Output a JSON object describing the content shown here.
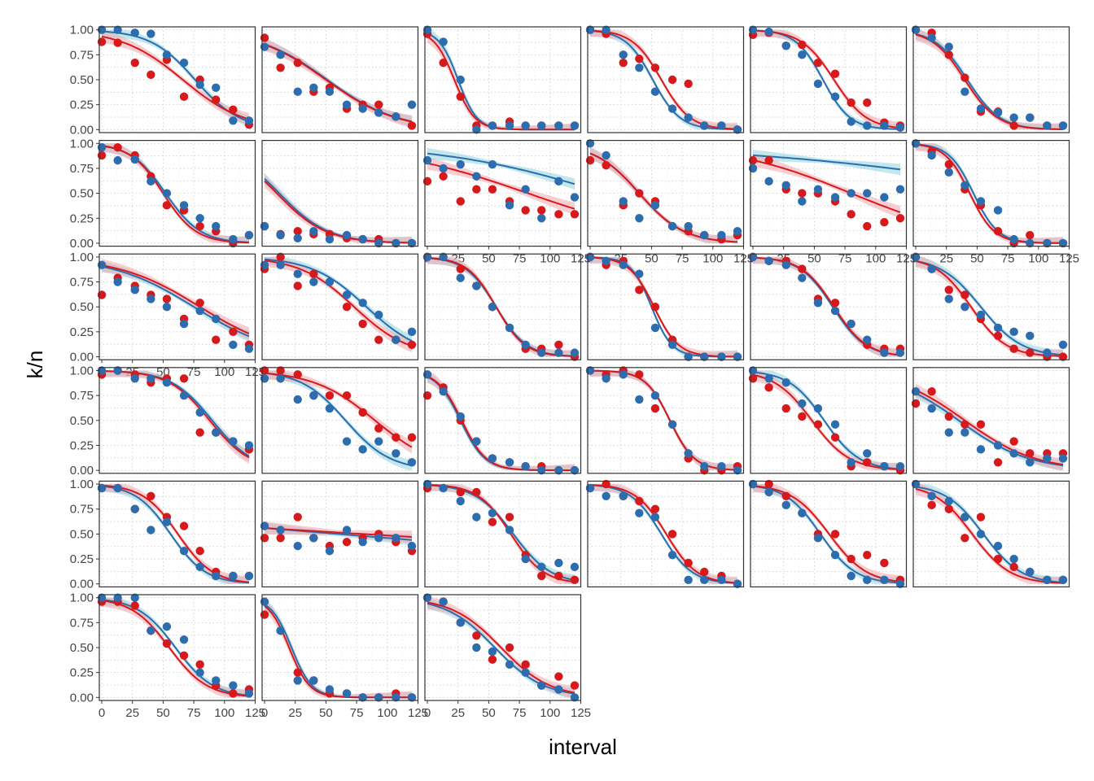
{
  "chart_data": {
    "type": "scatter",
    "layout": "facet-grid 6 rows x 6 columns, 33 panels, panels filled row by row",
    "xlabel": "interval",
    "ylabel": "k/n",
    "xlim": [
      -2,
      125
    ],
    "ylim": [
      -0.03,
      1.03
    ],
    "x_ticks": [
      0,
      25,
      50,
      75,
      100,
      125
    ],
    "x_tick_labels": [
      "0",
      "25",
      "50",
      "75",
      "100",
      "125"
    ],
    "y_ticks": [
      0,
      0.25,
      0.5,
      0.75,
      1
    ],
    "y_tick_labels": [
      "0.00",
      "0.25",
      "0.50",
      "0.75",
      "1.00"
    ],
    "x_tick_labels_shown_under": [
      8,
      9,
      10,
      11,
      12,
      30,
      31,
      32
    ],
    "grid": "dotted minor/major gridlines",
    "x": [
      0,
      13,
      27,
      40,
      53,
      67,
      80,
      93,
      107,
      120
    ],
    "series_colors": {
      "red": "#d7191c",
      "blue": "#2c6db0"
    },
    "ribbon_colors": {
      "red": "#f4a6ad",
      "blue": "#8fd3df",
      "overlap": "#9aa0a6"
    },
    "panels": [
      {
        "red": [
          0.88,
          0.87,
          0.67,
          0.55,
          0.7,
          0.33,
          0.5,
          0.3,
          0.2,
          0.05
        ],
        "blue": [
          1.0,
          1.0,
          0.97,
          0.96,
          0.75,
          0.67,
          0.45,
          0.42,
          0.09,
          0.09
        ],
        "fit_red": [
          66,
          -0.04
        ],
        "fit_blue": [
          76,
          -0.055
        ]
      },
      {
        "red": [
          0.92,
          0.62,
          0.67,
          0.38,
          0.42,
          0.21,
          0.25,
          0.25,
          0.13,
          0.04
        ],
        "blue": [
          0.83,
          0.75,
          0.38,
          0.42,
          0.38,
          0.25,
          0.21,
          0.17,
          0.13,
          0.25
        ],
        "fit_red": [
          50,
          -0.035
        ],
        "fit_blue": [
          51,
          -0.035
        ]
      },
      {
        "red": [
          0.96,
          0.67,
          0.33,
          0.04,
          0.04,
          0.08,
          0.04,
          0.04,
          0.04,
          0.04
        ],
        "blue": [
          1.0,
          0.88,
          0.5,
          0.0,
          0.04,
          0.04,
          0.04,
          0.04,
          0.04,
          0.04
        ],
        "fit_red": [
          22,
          -0.12
        ],
        "fit_blue": [
          25,
          -0.13
        ]
      },
      {
        "red": [
          1.0,
          0.96,
          0.67,
          0.71,
          0.62,
          0.5,
          0.46,
          0.04,
          0.04,
          0.0
        ],
        "blue": [
          1.0,
          1.0,
          0.75,
          0.62,
          0.38,
          0.21,
          0.12,
          0.04,
          0.04,
          0.0
        ],
        "fit_red": [
          58,
          -0.085
        ],
        "fit_blue": [
          51,
          -0.09
        ]
      },
      {
        "red": [
          0.95,
          0.97,
          0.84,
          0.85,
          0.67,
          0.56,
          0.27,
          0.27,
          0.07,
          0.04
        ],
        "blue": [
          1.0,
          0.98,
          0.84,
          0.75,
          0.46,
          0.33,
          0.08,
          0.04,
          0.04,
          0.02
        ],
        "fit_red": [
          66,
          -0.075
        ],
        "fit_blue": [
          57,
          -0.09
        ]
      },
      {
        "red": [
          1.0,
          0.97,
          0.75,
          0.52,
          0.18,
          0.18,
          0.04,
          0.12,
          0.04,
          0.04
        ],
        "blue": [
          1.0,
          0.92,
          0.83,
          0.38,
          0.21,
          0.17,
          0.12,
          0.12,
          0.04,
          0.04
        ],
        "fit_red": [
          40,
          -0.075
        ],
        "fit_blue": [
          42,
          -0.075
        ]
      },
      {
        "red": [
          0.88,
          0.96,
          0.88,
          0.67,
          0.38,
          0.33,
          0.17,
          0.12,
          0.0,
          0.08
        ],
        "blue": [
          0.96,
          0.83,
          0.84,
          0.62,
          0.5,
          0.38,
          0.25,
          0.17,
          0.04,
          0.08
        ],
        "fit_red": [
          50,
          -0.075
        ],
        "fit_blue": [
          52,
          -0.07
        ]
      },
      {
        "red": [
          0.17,
          0.09,
          0.12,
          0.09,
          0.09,
          0.05,
          0.04,
          0.04,
          0.0,
          0.0
        ],
        "blue": [
          0.17,
          0.08,
          0.05,
          0.12,
          0.04,
          0.08,
          0.04,
          0.0,
          0.0,
          0.0
        ],
        "fit_red": [
          10,
          -0.05
        ],
        "fit_blue": [
          12,
          -0.05
        ]
      },
      {
        "red": [
          0.62,
          0.67,
          0.42,
          0.54,
          0.54,
          0.42,
          0.33,
          0.33,
          0.29,
          0.29
        ],
        "blue": [
          0.83,
          0.75,
          0.79,
          0.67,
          0.79,
          0.38,
          0.54,
          0.25,
          0.62,
          0.46
        ],
        "fit_red": [
          82,
          -0.017
        ],
        "fit_blue": [
          145,
          -0.015
        ]
      },
      {
        "red": [
          0.83,
          0.78,
          0.38,
          0.5,
          0.42,
          0.17,
          0.12,
          0.08,
          0.04,
          0.08
        ],
        "blue": [
          1.0,
          0.88,
          0.42,
          0.25,
          0.38,
          0.17,
          0.17,
          0.08,
          0.08,
          0.12
        ],
        "fit_red": [
          40,
          -0.055
        ],
        "fit_blue": [
          40,
          -0.055
        ]
      },
      {
        "red": [
          0.83,
          0.83,
          0.54,
          0.5,
          0.5,
          0.42,
          0.29,
          0.17,
          0.21,
          0.25
        ],
        "blue": [
          0.75,
          0.62,
          0.58,
          0.42,
          0.54,
          0.46,
          0.5,
          0.5,
          0.46,
          0.54
        ],
        "fit_red": [
          80,
          -0.02
        ],
        "fit_blue": [
          250,
          -0.008
        ]
      },
      {
        "red": [
          1.0,
          0.92,
          0.79,
          0.54,
          0.38,
          0.12,
          0.0,
          0.08,
          0.0,
          0.0
        ],
        "blue": [
          1.0,
          0.88,
          0.71,
          0.58,
          0.42,
          0.33,
          0.04,
          0.0,
          0.0,
          0.0
        ],
        "fit_red": [
          44,
          -0.1
        ],
        "fit_blue": [
          47,
          -0.1
        ]
      },
      {
        "red": [
          0.62,
          0.79,
          0.71,
          0.62,
          0.58,
          0.38,
          0.54,
          0.17,
          0.25,
          0.12
        ],
        "blue": [
          0.92,
          0.75,
          0.67,
          0.58,
          0.5,
          0.33,
          0.46,
          0.38,
          0.12,
          0.08
        ],
        "fit_red": [
          80,
          -0.03
        ],
        "fit_blue": [
          75,
          -0.03
        ]
      },
      {
        "red": [
          0.88,
          1.0,
          0.71,
          0.83,
          0.75,
          0.5,
          0.33,
          0.17,
          0.17,
          0.12
        ],
        "blue": [
          0.92,
          0.92,
          0.83,
          0.75,
          0.75,
          0.62,
          0.54,
          0.42,
          0.17,
          0.25
        ],
        "fit_red": [
          73,
          -0.045
        ],
        "fit_blue": [
          83,
          -0.045
        ]
      },
      {
        "red": [
          1.0,
          1.0,
          0.88,
          0.71,
          0.5,
          0.29,
          0.08,
          0.08,
          0.12,
          0.0
        ],
        "blue": [
          1.0,
          1.0,
          0.79,
          0.71,
          0.5,
          0.29,
          0.12,
          0.04,
          0.04,
          0.04
        ],
        "fit_red": [
          56,
          -0.085
        ],
        "fit_blue": [
          56,
          -0.08
        ]
      },
      {
        "red": [
          1.0,
          0.92,
          0.96,
          0.67,
          0.5,
          0.17,
          0.0,
          0.0,
          0.0,
          0.0
        ],
        "blue": [
          1.0,
          0.96,
          0.92,
          0.83,
          0.29,
          0.12,
          0.0,
          0.0,
          0.0,
          0.0
        ],
        "fit_red": [
          52,
          -0.1
        ],
        "fit_blue": [
          50,
          -0.12
        ]
      },
      {
        "red": [
          1.0,
          0.96,
          0.96,
          0.88,
          0.58,
          0.54,
          0.33,
          0.12,
          0.08,
          0.08
        ],
        "blue": [
          1.0,
          0.96,
          0.92,
          0.79,
          0.54,
          0.46,
          0.33,
          0.17,
          0.04,
          0.04
        ],
        "fit_red": [
          66,
          -0.075
        ],
        "fit_blue": [
          65,
          -0.075
        ]
      },
      {
        "red": [
          1.0,
          0.88,
          0.67,
          0.62,
          0.38,
          0.21,
          0.08,
          0.04,
          0.0,
          0.0
        ],
        "blue": [
          1.0,
          0.88,
          0.58,
          0.5,
          0.42,
          0.29,
          0.25,
          0.21,
          0.04,
          0.12
        ],
        "fit_red": [
          45,
          -0.07
        ],
        "fit_blue": [
          53,
          -0.06
        ]
      },
      {
        "red": [
          0.96,
          1.0,
          0.96,
          0.88,
          0.92,
          0.92,
          0.38,
          0.38,
          0.29,
          0.21
        ],
        "blue": [
          1.0,
          1.0,
          0.92,
          0.92,
          0.88,
          0.75,
          0.58,
          0.38,
          0.29,
          0.25
        ],
        "fit_red": [
          88,
          -0.06
        ],
        "fit_blue": [
          90,
          -0.06
        ]
      },
      {
        "red": [
          1.0,
          1.0,
          0.96,
          0.75,
          0.75,
          0.75,
          0.58,
          0.42,
          0.33,
          0.33
        ],
        "blue": [
          0.92,
          0.92,
          0.71,
          0.75,
          0.62,
          0.29,
          0.21,
          0.29,
          0.17,
          0.08
        ],
        "fit_red": [
          90,
          -0.04
        ],
        "fit_blue": [
          66,
          -0.055
        ]
      },
      {
        "red": [
          0.75,
          0.83,
          0.5,
          0.29,
          0.12,
          0.08,
          0.04,
          0.04,
          0.0,
          0.0
        ],
        "blue": [
          0.96,
          0.79,
          0.54,
          0.29,
          0.12,
          0.08,
          0.04,
          0.0,
          0.0,
          0.0
        ],
        "fit_red": [
          28,
          -0.1
        ],
        "fit_blue": [
          27,
          -0.1
        ]
      },
      {
        "red": [
          1.0,
          0.96,
          1.0,
          0.96,
          0.62,
          0.46,
          0.12,
          0.0,
          0.0,
          0.04
        ],
        "blue": [
          1.0,
          0.92,
          0.96,
          0.71,
          0.75,
          0.46,
          0.17,
          0.04,
          0.04,
          0.0
        ],
        "fit_red": [
          65,
          -0.1
        ],
        "fit_blue": [
          65,
          -0.1
        ]
      },
      {
        "red": [
          0.92,
          0.83,
          0.62,
          0.54,
          0.46,
          0.33,
          0.04,
          0.08,
          0.04,
          0.0
        ],
        "blue": [
          1.0,
          0.92,
          0.88,
          0.67,
          0.62,
          0.46,
          0.08,
          0.17,
          0.04,
          0.04
        ],
        "fit_red": [
          48,
          -0.065
        ],
        "fit_blue": [
          58,
          -0.07
        ]
      },
      {
        "red": [
          0.67,
          0.79,
          0.54,
          0.46,
          0.46,
          0.08,
          0.29,
          0.17,
          0.17,
          0.17
        ],
        "blue": [
          0.79,
          0.62,
          0.38,
          0.38,
          0.21,
          0.25,
          0.17,
          0.08,
          0.12,
          0.12
        ],
        "fit_red": [
          40,
          -0.035
        ],
        "fit_blue": [
          35,
          -0.035
        ]
      },
      {
        "red": [
          0.96,
          0.96,
          0.75,
          0.88,
          0.67,
          0.58,
          0.33,
          0.12,
          0.08,
          0.08
        ],
        "blue": [
          0.96,
          0.96,
          0.75,
          0.54,
          0.62,
          0.33,
          0.17,
          0.08,
          0.08,
          0.08
        ],
        "fit_red": [
          62,
          -0.07
        ],
        "fit_blue": [
          56,
          -0.07
        ]
      },
      {
        "red": [
          0.46,
          0.46,
          0.67,
          0.46,
          0.38,
          0.42,
          0.46,
          0.5,
          0.42,
          0.33
        ],
        "blue": [
          0.58,
          0.54,
          0.38,
          0.46,
          0.33,
          0.54,
          0.42,
          0.46,
          0.46,
          0.38
        ],
        "fit_red": [
          80,
          -0.003
        ],
        "fit_blue": [
          60,
          -0.004
        ]
      },
      {
        "red": [
          0.96,
          0.96,
          0.92,
          0.92,
          0.62,
          0.67,
          0.29,
          0.08,
          0.08,
          0.04
        ],
        "blue": [
          1.0,
          0.96,
          0.83,
          0.67,
          0.71,
          0.54,
          0.25,
          0.17,
          0.21,
          0.17
        ],
        "fit_red": [
          68,
          -0.075
        ],
        "fit_blue": [
          70,
          -0.065
        ]
      },
      {
        "red": [
          0.96,
          1.0,
          0.88,
          0.83,
          0.75,
          0.5,
          0.21,
          0.12,
          0.08,
          0.0
        ],
        "blue": [
          0.96,
          0.88,
          0.88,
          0.71,
          0.67,
          0.29,
          0.04,
          0.04,
          0.04,
          0.0
        ],
        "fit_red": [
          62,
          -0.08
        ],
        "fit_blue": [
          58,
          -0.08
        ]
      },
      {
        "red": [
          1.0,
          1.0,
          0.88,
          0.71,
          0.5,
          0.5,
          0.25,
          0.29,
          0.21,
          0.04
        ],
        "blue": [
          1.0,
          0.92,
          0.79,
          0.71,
          0.46,
          0.29,
          0.08,
          0.04,
          0.04,
          0.0
        ],
        "fit_red": [
          62,
          -0.065
        ],
        "fit_blue": [
          55,
          -0.07
        ]
      },
      {
        "red": [
          1.0,
          0.79,
          0.75,
          0.46,
          0.67,
          0.25,
          0.17,
          0.12,
          0.04,
          0.04
        ],
        "blue": [
          1.0,
          0.88,
          0.83,
          0.67,
          0.5,
          0.38,
          0.25,
          0.12,
          0.04,
          0.04
        ],
        "fit_red": [
          46,
          -0.065
        ],
        "fit_blue": [
          55,
          -0.065
        ]
      },
      {
        "red": [
          0.96,
          0.96,
          0.92,
          0.67,
          0.54,
          0.42,
          0.33,
          0.12,
          0.04,
          0.08
        ],
        "blue": [
          1.0,
          1.0,
          1.0,
          0.67,
          0.71,
          0.58,
          0.25,
          0.17,
          0.12,
          0.04
        ],
        "fit_red": [
          55,
          -0.065
        ],
        "fit_blue": [
          60,
          -0.065
        ]
      },
      {
        "red": [
          0.83,
          0.67,
          0.25,
          0.17,
          0.04,
          0.04,
          0.0,
          0.0,
          0.04,
          0.0
        ],
        "blue": [
          0.96,
          0.67,
          0.17,
          0.17,
          0.08,
          0.04,
          0.0,
          0.0,
          0.0,
          0.0
        ],
        "fit_red": [
          20,
          -0.12
        ],
        "fit_blue": [
          22,
          -0.12
        ]
      },
      {
        "red": [
          1.0,
          0.96,
          0.75,
          0.62,
          0.38,
          0.5,
          0.33,
          0.12,
          0.21,
          0.12
        ],
        "blue": [
          1.0,
          0.96,
          0.75,
          0.5,
          0.46,
          0.33,
          0.25,
          0.12,
          0.08,
          0.0
        ],
        "fit_red": [
          60,
          -0.05
        ],
        "fit_blue": [
          55,
          -0.05
        ]
      }
    ]
  }
}
